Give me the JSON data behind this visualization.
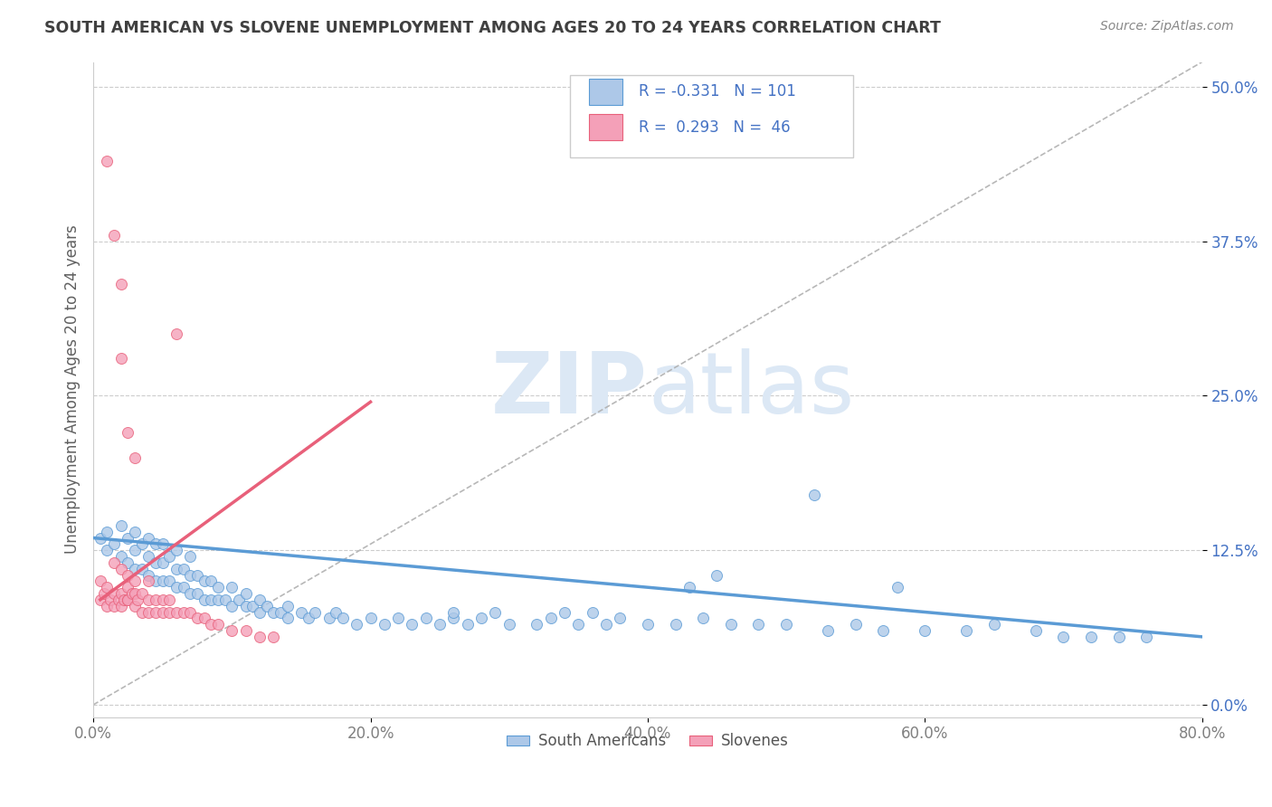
{
  "title": "SOUTH AMERICAN VS SLOVENE UNEMPLOYMENT AMONG AGES 20 TO 24 YEARS CORRELATION CHART",
  "source": "Source: ZipAtlas.com",
  "ylabel": "Unemployment Among Ages 20 to 24 years",
  "xlabel_ticks": [
    "0.0%",
    "20.0%",
    "40.0%",
    "60.0%",
    "80.0%"
  ],
  "ylabel_ticks": [
    "0.0%",
    "12.5%",
    "25.0%",
    "37.5%",
    "50.0%"
  ],
  "xlim": [
    0.0,
    0.8
  ],
  "ylim": [
    -0.01,
    0.52
  ],
  "legend_label1": "South Americans",
  "legend_label2": "Slovenes",
  "R1": -0.331,
  "N1": 101,
  "R2": 0.293,
  "N2": 46,
  "color_blue": "#adc8e8",
  "color_pink": "#f4a0b8",
  "color_blue_line": "#5b9bd5",
  "color_pink_line": "#e8607a",
  "color_diag": "#b0b0b0",
  "title_color": "#404040",
  "axis_tick_color": "#4472c4",
  "xtick_color": "#808080",
  "watermark_zip": "ZIP",
  "watermark_atlas": "atlas",
  "watermark_color": "#dce8f5",
  "south_american_x": [
    0.005,
    0.01,
    0.01,
    0.015,
    0.02,
    0.02,
    0.025,
    0.025,
    0.03,
    0.03,
    0.03,
    0.035,
    0.035,
    0.04,
    0.04,
    0.04,
    0.045,
    0.045,
    0.045,
    0.05,
    0.05,
    0.05,
    0.055,
    0.055,
    0.06,
    0.06,
    0.06,
    0.065,
    0.065,
    0.07,
    0.07,
    0.07,
    0.075,
    0.075,
    0.08,
    0.08,
    0.085,
    0.085,
    0.09,
    0.09,
    0.095,
    0.1,
    0.1,
    0.105,
    0.11,
    0.11,
    0.115,
    0.12,
    0.12,
    0.125,
    0.13,
    0.135,
    0.14,
    0.14,
    0.15,
    0.155,
    0.16,
    0.17,
    0.175,
    0.18,
    0.19,
    0.2,
    0.21,
    0.22,
    0.23,
    0.24,
    0.25,
    0.26,
    0.27,
    0.28,
    0.3,
    0.32,
    0.33,
    0.35,
    0.37,
    0.38,
    0.4,
    0.42,
    0.44,
    0.46,
    0.48,
    0.5,
    0.53,
    0.55,
    0.57,
    0.6,
    0.63,
    0.65,
    0.68,
    0.7,
    0.72,
    0.74,
    0.76,
    0.52,
    0.58,
    0.45,
    0.43,
    0.36,
    0.34,
    0.29,
    0.26
  ],
  "south_american_y": [
    0.135,
    0.14,
    0.125,
    0.13,
    0.12,
    0.145,
    0.115,
    0.135,
    0.11,
    0.125,
    0.14,
    0.11,
    0.13,
    0.105,
    0.12,
    0.135,
    0.1,
    0.115,
    0.13,
    0.1,
    0.115,
    0.13,
    0.1,
    0.12,
    0.095,
    0.11,
    0.125,
    0.095,
    0.11,
    0.09,
    0.105,
    0.12,
    0.09,
    0.105,
    0.085,
    0.1,
    0.085,
    0.1,
    0.085,
    0.095,
    0.085,
    0.08,
    0.095,
    0.085,
    0.08,
    0.09,
    0.08,
    0.075,
    0.085,
    0.08,
    0.075,
    0.075,
    0.07,
    0.08,
    0.075,
    0.07,
    0.075,
    0.07,
    0.075,
    0.07,
    0.065,
    0.07,
    0.065,
    0.07,
    0.065,
    0.07,
    0.065,
    0.07,
    0.065,
    0.07,
    0.065,
    0.065,
    0.07,
    0.065,
    0.065,
    0.07,
    0.065,
    0.065,
    0.07,
    0.065,
    0.065,
    0.065,
    0.06,
    0.065,
    0.06,
    0.06,
    0.06,
    0.065,
    0.06,
    0.055,
    0.055,
    0.055,
    0.055,
    0.17,
    0.095,
    0.105,
    0.095,
    0.075,
    0.075,
    0.075,
    0.075
  ],
  "slovene_x": [
    0.005,
    0.005,
    0.008,
    0.01,
    0.01,
    0.012,
    0.015,
    0.015,
    0.015,
    0.018,
    0.02,
    0.02,
    0.02,
    0.022,
    0.025,
    0.025,
    0.025,
    0.025,
    0.028,
    0.03,
    0.03,
    0.03,
    0.032,
    0.035,
    0.035,
    0.04,
    0.04,
    0.04,
    0.045,
    0.045,
    0.05,
    0.05,
    0.055,
    0.055,
    0.06,
    0.06,
    0.065,
    0.07,
    0.075,
    0.08,
    0.085,
    0.09,
    0.1,
    0.11,
    0.12,
    0.13
  ],
  "slovene_y": [
    0.1,
    0.085,
    0.09,
    0.095,
    0.08,
    0.085,
    0.09,
    0.08,
    0.115,
    0.085,
    0.08,
    0.09,
    0.11,
    0.085,
    0.085,
    0.095,
    0.105,
    0.085,
    0.09,
    0.09,
    0.08,
    0.1,
    0.085,
    0.09,
    0.075,
    0.085,
    0.1,
    0.075,
    0.085,
    0.075,
    0.075,
    0.085,
    0.075,
    0.085,
    0.075,
    0.3,
    0.075,
    0.075,
    0.07,
    0.07,
    0.065,
    0.065,
    0.06,
    0.06,
    0.055,
    0.055
  ],
  "slovene_outlier_x": [
    0.01,
    0.015,
    0.02,
    0.02,
    0.025,
    0.03
  ],
  "slovene_outlier_y": [
    0.44,
    0.38,
    0.34,
    0.28,
    0.22,
    0.2
  ],
  "sa_trend_x": [
    0.0,
    0.8
  ],
  "sa_trend_y": [
    0.135,
    0.055
  ],
  "sl_trend_x": [
    0.005,
    0.2
  ],
  "sl_trend_y": [
    0.085,
    0.245
  ]
}
